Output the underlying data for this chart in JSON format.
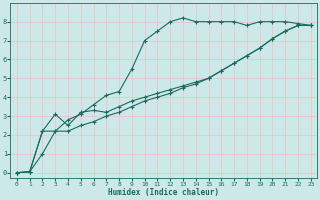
{
  "xlabel": "Humidex (Indice chaleur)",
  "ylabel": "",
  "bg_color": "#cde8e8",
  "grid_color": "#f0c0c0",
  "line_color": "#1a6b5e",
  "xlim": [
    -0.5,
    23.5
  ],
  "ylim": [
    -0.3,
    9
  ],
  "xticks": [
    0,
    1,
    2,
    3,
    4,
    5,
    6,
    7,
    8,
    9,
    10,
    11,
    12,
    13,
    14,
    15,
    16,
    17,
    18,
    19,
    20,
    21,
    22,
    23
  ],
  "yticks": [
    0,
    1,
    2,
    3,
    4,
    5,
    6,
    7,
    8
  ],
  "series": [
    {
      "x": [
        0,
        1,
        2,
        3,
        4,
        5,
        6,
        7,
        8,
        9,
        10,
        11,
        12,
        13,
        14,
        15,
        16,
        17,
        18,
        19,
        20,
        21,
        22,
        23
      ],
      "y": [
        0,
        0.05,
        1.0,
        2.2,
        2.8,
        3.1,
        3.6,
        4.1,
        4.3,
        5.5,
        7.0,
        7.5,
        8.0,
        8.2,
        8.0,
        8.0,
        8.0,
        8.0,
        7.8,
        8.0,
        8.0,
        8.0,
        7.9,
        7.8
      ]
    },
    {
      "x": [
        0,
        1,
        2,
        3,
        4,
        5,
        6,
        7,
        8,
        9,
        10,
        11,
        12,
        13,
        14,
        15,
        16,
        17,
        18,
        19,
        20,
        21,
        22,
        23
      ],
      "y": [
        0,
        0.05,
        2.2,
        3.1,
        2.5,
        3.2,
        3.3,
        3.2,
        3.5,
        3.8,
        4.0,
        4.2,
        4.4,
        4.6,
        4.8,
        5.0,
        5.4,
        5.8,
        6.2,
        6.6,
        7.1,
        7.5,
        7.8,
        7.8
      ]
    },
    {
      "x": [
        0,
        1,
        2,
        3,
        4,
        5,
        6,
        7,
        8,
        9,
        10,
        11,
        12,
        13,
        14,
        15,
        16,
        17,
        18,
        19,
        20,
        21,
        22,
        23
      ],
      "y": [
        0,
        0.05,
        2.2,
        2.2,
        2.2,
        2.5,
        2.7,
        3.0,
        3.2,
        3.5,
        3.8,
        4.0,
        4.2,
        4.5,
        4.7,
        5.0,
        5.4,
        5.8,
        6.2,
        6.6,
        7.1,
        7.5,
        7.8,
        7.8
      ]
    }
  ]
}
